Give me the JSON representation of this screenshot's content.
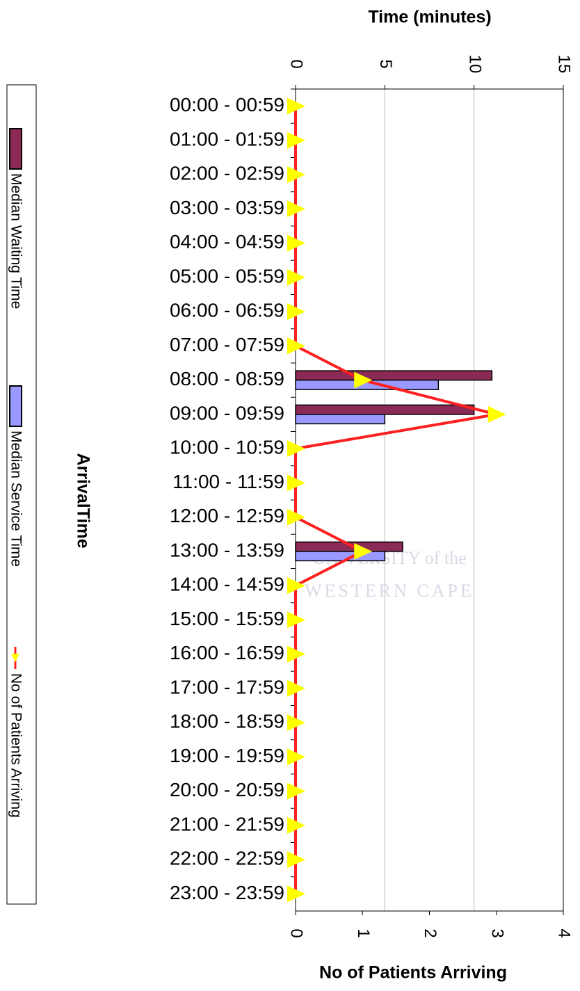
{
  "chart_data": {
    "type": "bar",
    "orientation": "horizontal",
    "x_title": "Time (minutes)",
    "x2_title": "No of Patients Arriving",
    "y_title": "ArrivalTime",
    "watermark": [
      "UNIVERSITY of the",
      "WESTERN CAPE"
    ],
    "categories": [
      "00:00 - 00:59",
      "01:00 - 01:59",
      "02:00 - 02:59",
      "03:00 - 03:59",
      "04:00 - 04:59",
      "05:00 - 05:59",
      "06:00 - 06:59",
      "07:00 - 07:59",
      "08:00 - 08:59",
      "09:00 - 09:59",
      "10:00 - 10:59",
      "11:00 - 11:59",
      "12:00 - 12:59",
      "13:00 - 13:59",
      "14:00 - 14:59",
      "15:00 - 15:59",
      "16:00 - 16:59",
      "17:00 - 17:59",
      "18:00 - 18:59",
      "19:00 - 19:59",
      "20:00 - 20:59",
      "21:00 - 21:59",
      "22:00 - 22:59",
      "23:00 - 23:59"
    ],
    "series": [
      {
        "name": "Median Waiting Time",
        "color": "#8b2a55",
        "values": [
          0,
          0,
          0,
          0,
          0,
          0,
          0,
          0,
          11,
          10,
          0,
          0,
          0,
          6,
          0,
          0,
          0,
          0,
          0,
          0,
          0,
          0,
          0,
          0
        ]
      },
      {
        "name": "Median Service Time",
        "color": "#9999ff",
        "values": [
          0,
          0,
          0,
          0,
          0,
          0,
          0,
          0,
          8,
          5,
          0,
          0,
          0,
          5,
          0,
          0,
          0,
          0,
          0,
          0,
          0,
          0,
          0,
          0
        ]
      },
      {
        "name": "No of Patients Arriving",
        "color": "#ff2020",
        "marker_color": "#ffff00",
        "type": "line",
        "axis": "x2",
        "values": [
          0,
          0,
          0,
          0,
          0,
          0,
          0,
          0,
          1,
          3,
          0,
          0,
          0,
          1,
          0,
          0,
          0,
          0,
          0,
          0,
          0,
          0,
          0,
          0
        ]
      }
    ],
    "xlim": [
      0,
      15
    ],
    "xticks": [
      0,
      5,
      10,
      15
    ],
    "x2lim": [
      0,
      4
    ],
    "x2ticks": [
      0,
      1,
      2,
      3,
      4
    ],
    "grid": true,
    "legend": "left"
  }
}
